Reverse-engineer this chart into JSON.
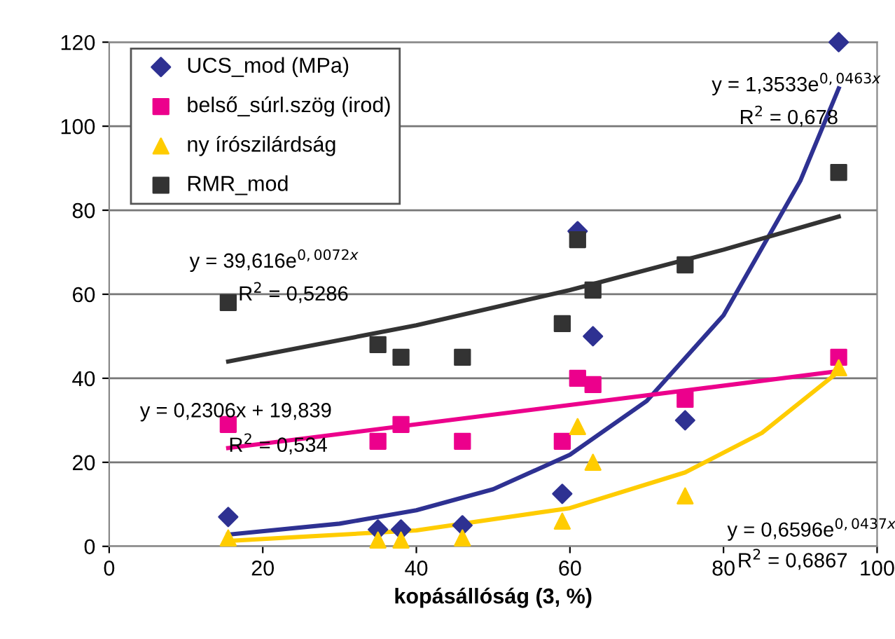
{
  "chart_data": {
    "type": "scatter",
    "xlabel": "kopásállóság (3, %)",
    "xlim": [
      0,
      100
    ],
    "xticks": [
      0,
      20,
      40,
      60,
      80,
      100
    ],
    "ylim": [
      0,
      120
    ],
    "yticks": [
      0,
      20,
      40,
      60,
      80,
      100,
      120
    ],
    "grid": "y",
    "legend": "top left",
    "series": [
      {
        "name": "UCS_mod (MPa)",
        "color": "#2e3192",
        "marker": "diamond",
        "x": [
          15.5,
          35,
          38,
          46,
          59,
          61,
          63,
          75,
          95
        ],
        "values": [
          7,
          4,
          4,
          5,
          12.5,
          75,
          50,
          30,
          120
        ]
      },
      {
        "name": "belső_súrl.szög (irod)",
        "color": "#ec008c",
        "marker": "square",
        "x": [
          15.5,
          35,
          38,
          46,
          59,
          61,
          63,
          75,
          95
        ],
        "values": [
          29,
          25,
          29,
          25,
          25,
          40,
          38.5,
          35,
          45
        ]
      },
      {
        "name": "ny írószilárdság",
        "color": "#ffcc00",
        "marker": "triangle",
        "x": [
          15.5,
          35,
          38,
          46,
          59,
          61,
          63,
          75,
          95
        ],
        "values": [
          2,
          1.5,
          1.5,
          2,
          6,
          28.5,
          20,
          12,
          42.5
        ]
      },
      {
        "name": "RMR_mod",
        "color": "#333333",
        "marker": "square",
        "x": [
          15.5,
          35,
          38,
          46,
          59,
          61,
          63,
          75,
          95
        ],
        "values": [
          58,
          48,
          45,
          45,
          53,
          73,
          61,
          67,
          89
        ]
      },
      {
        "type": "line",
        "color": "#2e3192",
        "marker": "none",
        "x": [
          15.5,
          30,
          40,
          50,
          60,
          70,
          80,
          90,
          95
        ],
        "values": [
          2.8,
          5.4,
          8.6,
          13.6,
          21.8,
          34.6,
          55,
          87,
          109
        ]
      },
      {
        "type": "line",
        "color": "#ec008c",
        "marker": "none",
        "x": [
          15.5,
          95
        ],
        "values": [
          23.4,
          41.7
        ]
      },
      {
        "type": "line",
        "color": "#ffcc00",
        "marker": "none",
        "x": [
          15.5,
          40,
          60,
          75,
          85,
          95
        ],
        "values": [
          1.3,
          3.8,
          9.1,
          17.6,
          27,
          41.6
        ]
      },
      {
        "type": "line",
        "color": "#333333",
        "marker": "none",
        "x": [
          15.5,
          40,
          60,
          80,
          95
        ],
        "values": [
          44,
          52.6,
          61,
          70.6,
          78.5
        ]
      }
    ],
    "annotations": [
      "y = 1,3533e$^{0,0463x}$",
      "R$^{2}$ = 0,678",
      "y = 39,616e$^{0,0072x}$",
      "R$^{2}$ = 0,5286",
      "y = 0,2306x + 19,839",
      "R$^{2}$ = 0,534",
      "y = 0,6596e$^{0,0437x}$",
      "R$^{2}$ = 0,6867"
    ]
  }
}
